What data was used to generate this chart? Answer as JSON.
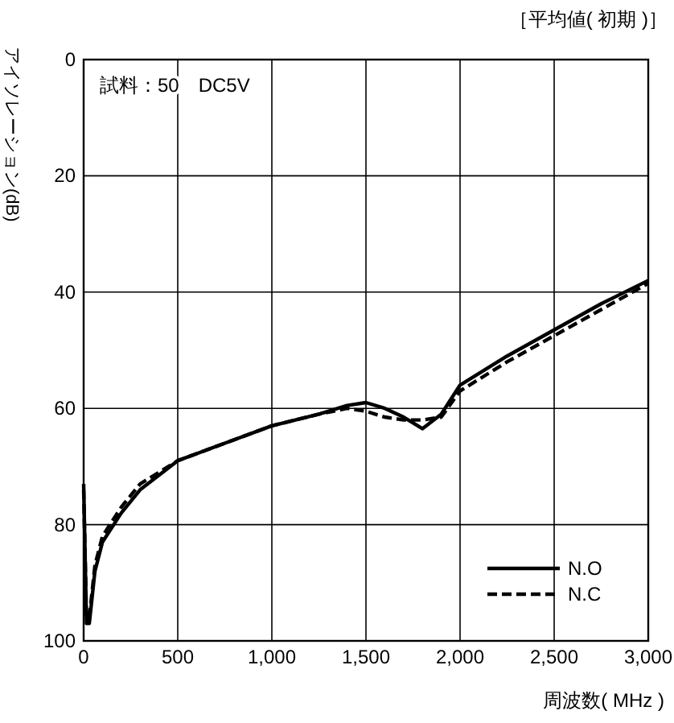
{
  "chart_data": {
    "type": "line",
    "subtitle": "［平均値( 初期 )］",
    "xlabel": "周波数( MHz )",
    "ylabel": "アイソレーション(dB)",
    "annotations": [
      "試料：50　DC5V"
    ],
    "xlim": [
      0,
      3000
    ],
    "xticks": [
      0,
      500,
      {
        "value": 1000,
        "label": "1,000"
      },
      {
        "value": 1500,
        "label": "1,500"
      },
      {
        "value": 2000,
        "label": "2,000"
      },
      {
        "value": 2500,
        "label": "2,500"
      },
      {
        "value": 3000,
        "label": "3,000"
      }
    ],
    "ylim": [
      100,
      0
    ],
    "yticks": [
      0,
      20,
      40,
      60,
      80,
      100
    ],
    "grid": true,
    "legend": "bottom right",
    "series": [
      {
        "name": "N.O",
        "color": "#000000",
        "line_style": "solid",
        "x": [
          0,
          15,
          30,
          60,
          100,
          200,
          300,
          500,
          750,
          1000,
          1250,
          1400,
          1500,
          1600,
          1700,
          1800,
          1900,
          2000,
          2250,
          2500,
          2750,
          3000
        ],
        "values": [
          73,
          97,
          97,
          88,
          83,
          78,
          74,
          69,
          66,
          63,
          61,
          59.5,
          59,
          60,
          61.5,
          63.5,
          61,
          56,
          51,
          46.5,
          42,
          38
        ]
      },
      {
        "name": "N.C",
        "color": "#000000",
        "line_style": "dashed",
        "x": [
          0,
          15,
          30,
          60,
          100,
          200,
          300,
          500,
          750,
          1000,
          1250,
          1400,
          1500,
          1600,
          1700,
          1800,
          1900,
          2000,
          2250,
          2500,
          2750,
          3000
        ],
        "values": [
          74,
          96,
          96,
          87,
          82,
          77,
          73,
          69,
          66,
          63,
          61,
          60,
          60.5,
          61.5,
          62,
          62,
          61.5,
          57,
          52,
          47.5,
          43,
          38.5
        ]
      }
    ]
  }
}
